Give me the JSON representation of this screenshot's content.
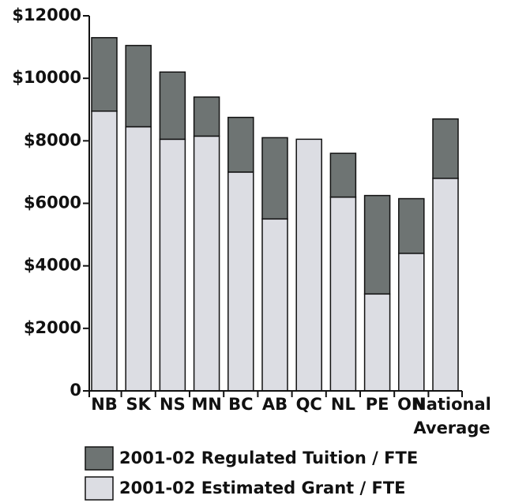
{
  "chart_data": {
    "type": "stacked-bar",
    "categories": [
      "NB",
      "SK",
      "NS",
      "MN",
      "BC",
      "AB",
      "QC",
      "NL",
      "PE",
      "ON",
      "National Average"
    ],
    "series": [
      {
        "name": "2001-02 Regulated Tuition / FTE",
        "color": "#6e7473",
        "values": [
          2350,
          2600,
          2150,
          1250,
          1750,
          2600,
          0,
          1400,
          3150,
          1750,
          1900
        ]
      },
      {
        "name": "2001-02 Estimated Grant / FTE",
        "color": "#dcdde3",
        "values": [
          8950,
          8450,
          8050,
          8150,
          7000,
          5500,
          8050,
          6200,
          3100,
          4400,
          6800
        ]
      }
    ],
    "ylim": [
      0,
      12000
    ],
    "yticks": [
      0,
      {
        "value": 2000,
        "label": "$2000"
      },
      {
        "value": 4000,
        "label": "$4000"
      },
      {
        "value": 6000,
        "label": "$6000"
      },
      {
        "value": 8000,
        "label": "$8000"
      },
      {
        "value": 10000,
        "label": "$10000"
      },
      {
        "value": 12000,
        "label": "$12000"
      }
    ],
    "legend": "bottom"
  }
}
